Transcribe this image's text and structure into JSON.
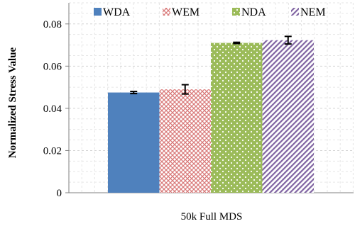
{
  "chart_data": {
    "type": "bar",
    "categories": [
      "50k Full MDS"
    ],
    "series": [
      {
        "name": "WDA",
        "values": [
          0.0475
        ],
        "error": [
          0.0005
        ],
        "color": "#4f81bd",
        "pattern": "solid"
      },
      {
        "name": "WEM",
        "values": [
          0.049
        ],
        "error": [
          0.0022
        ],
        "color": "#d97a7a",
        "pattern": "cross-hatch"
      },
      {
        "name": "NDA",
        "values": [
          0.071
        ],
        "error": [
          0.0003
        ],
        "color": "#9bbb59",
        "pattern": "dots"
      },
      {
        "name": "NEM",
        "values": [
          0.0723
        ],
        "error": [
          0.0018
        ],
        "color": "#8064a2",
        "pattern": "diagonal-stripes"
      }
    ],
    "ylabel": "Normalized Stress Value",
    "xlabel": "",
    "ylim": [
      0,
      0.09
    ],
    "yticks": [
      "0",
      "0.02",
      "0.04",
      "0.06",
      "0.08"
    ],
    "grid": true,
    "legend_position": "top"
  }
}
